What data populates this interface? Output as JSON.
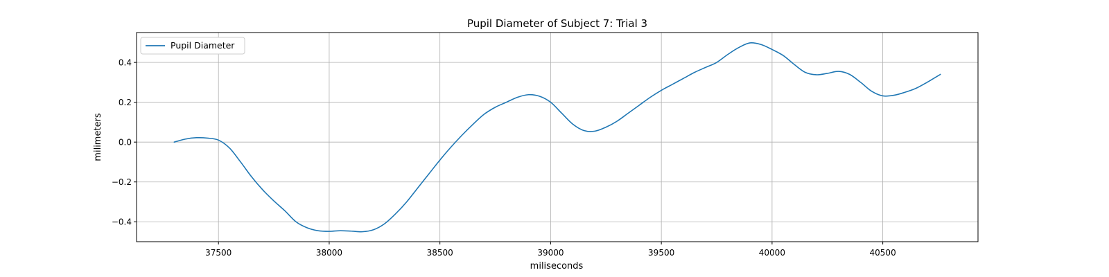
{
  "chart_data": {
    "type": "line",
    "title": "Pupil Diameter of Subject 7: Trial 3",
    "xlabel": "miliseconds",
    "ylabel": "milimeters",
    "xlim": [
      37130,
      40930
    ],
    "ylim": [
      -0.5,
      0.55
    ],
    "xticks": [
      37500,
      38000,
      38500,
      39000,
      39500,
      40000,
      40500
    ],
    "yticks": [
      -0.4,
      -0.2,
      0.0,
      0.2,
      0.4
    ],
    "ytick_labels": [
      "−0.4",
      "−0.2",
      "0.0",
      "0.2",
      "0.4"
    ],
    "grid": true,
    "legend": {
      "position": "top-left"
    },
    "series": [
      {
        "name": "Pupil Diameter",
        "color": "#1f77b4",
        "x": [
          37300,
          37350,
          37400,
          37450,
          37500,
          37550,
          37600,
          37650,
          37700,
          37750,
          37800,
          37850,
          37900,
          37950,
          38000,
          38050,
          38100,
          38150,
          38200,
          38250,
          38300,
          38350,
          38400,
          38450,
          38500,
          38550,
          38600,
          38650,
          38700,
          38750,
          38800,
          38850,
          38900,
          38950,
          39000,
          39050,
          39100,
          39150,
          39200,
          39250,
          39300,
          39350,
          39400,
          39450,
          39500,
          39550,
          39600,
          39650,
          39700,
          39750,
          39800,
          39850,
          39900,
          39950,
          40000,
          40050,
          40100,
          40150,
          40200,
          40250,
          40300,
          40350,
          40400,
          40450,
          40500,
          40550,
          40600,
          40650,
          40700,
          40760
        ],
        "y": [
          0.0,
          0.015,
          0.022,
          0.02,
          0.01,
          -0.03,
          -0.1,
          -0.175,
          -0.24,
          -0.295,
          -0.345,
          -0.4,
          -0.43,
          -0.445,
          -0.448,
          -0.445,
          -0.447,
          -0.45,
          -0.44,
          -0.41,
          -0.36,
          -0.3,
          -0.23,
          -0.16,
          -0.09,
          -0.025,
          0.035,
          0.09,
          0.14,
          0.175,
          0.2,
          0.225,
          0.238,
          0.23,
          0.2,
          0.145,
          0.09,
          0.058,
          0.055,
          0.075,
          0.105,
          0.145,
          0.185,
          0.225,
          0.26,
          0.29,
          0.32,
          0.35,
          0.375,
          0.4,
          0.44,
          0.475,
          0.498,
          0.49,
          0.465,
          0.435,
          0.39,
          0.35,
          0.338,
          0.345,
          0.355,
          0.34,
          0.3,
          0.255,
          0.232,
          0.235,
          0.25,
          0.27,
          0.3,
          0.34
        ]
      }
    ]
  }
}
